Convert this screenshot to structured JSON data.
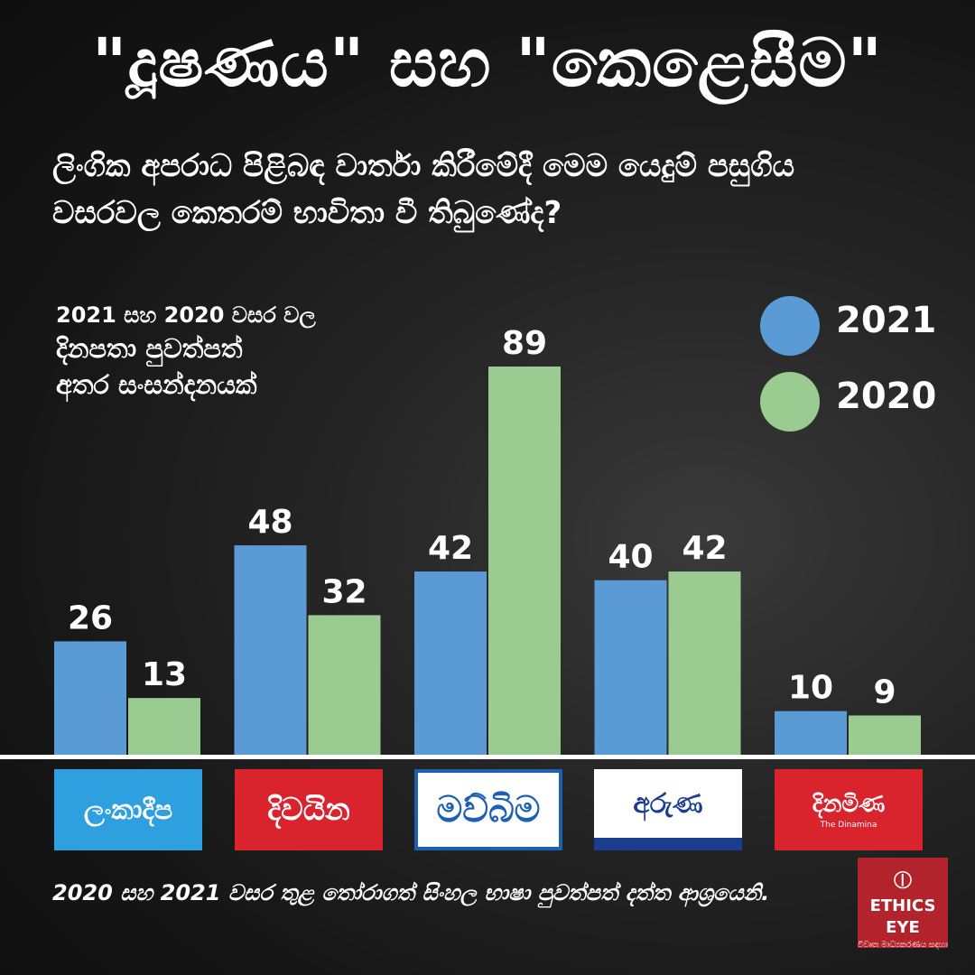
{
  "title": "\"දූෂණය\" සහ \"කෙළෙසීම\"",
  "subtitle": "ලිංගික අපරාධ පිළිබඳ වාර්තා කිරීමේදී මෙම යෙදුම් පසුගිය වසරවල කෙතරම් භාවිතා වී තිබුණේද?",
  "note": {
    "line1": "2021 සහ 2020 වසර වල",
    "line2": "දිනපතා පුවත්පත්",
    "line3": "අතර සංසන්දනයක්"
  },
  "colors": {
    "y2021": "#5b9bd5",
    "y2020": "#9acb91",
    "background": "#1a1a1a",
    "baseline": "#ffffff"
  },
  "chart_data": {
    "type": "bar",
    "title": "\"දූෂණය\" සහ \"කෙළෙසීම\"",
    "categories": [
      "ලංකාදීප",
      "දිවයින",
      "මව්බිම",
      "අරුණ",
      "දිනමිණ"
    ],
    "series": [
      {
        "name": "2021",
        "values": [
          26,
          48,
          42,
          40,
          10
        ],
        "color": "#5b9bd5"
      },
      {
        "name": "2020",
        "values": [
          13,
          32,
          89,
          42,
          9
        ],
        "color": "#9acb91"
      }
    ],
    "ylim": [
      0,
      89
    ],
    "grid": false,
    "legend_position": "top-right",
    "data_labels": true,
    "xlabel": "",
    "ylabel": ""
  },
  "logos": [
    {
      "text": "ලංකාදීප"
    },
    {
      "text": "දිවයින"
    },
    {
      "text": "මව්බිම"
    },
    {
      "text": "අරුණ"
    },
    {
      "text": "දිනමිණ",
      "sub": "The Dinamina"
    }
  ],
  "footer": "2020 සහ 2021 වසර තුළ තෝරාගත් සිංහල භාෂා පුවත්පත් දත්ත ආශ්‍රයෙනි.",
  "badge": {
    "icon": "ethics-eye-logo-icon",
    "name": "ETHICS EYE",
    "tagline": "විවෘත මාධ්‍යකරණය සඳහා"
  }
}
